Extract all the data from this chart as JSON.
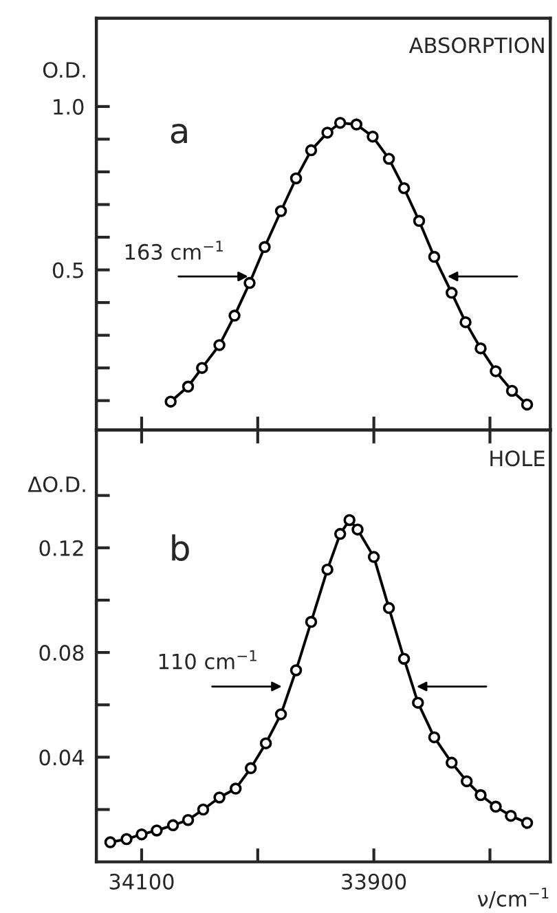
{
  "chart_data": [
    {
      "type": "line",
      "ylabel": "O.D.",
      "marker": "circle",
      "line_style": "solid",
      "grid": false,
      "tick_labels": "y",
      "xlim": [
        34139,
        33748
      ],
      "xticks": [
        {
          "value": 34100,
          "label": null
        },
        {
          "value": 34000,
          "label": null
        },
        {
          "value": 33900,
          "label": null
        },
        {
          "value": 33800,
          "label": null
        }
      ],
      "ylim": [
        0.01,
        1.27
      ],
      "yticks": [
        {
          "value": 0.1,
          "label": null
        },
        {
          "value": 0.2,
          "label": null
        },
        {
          "value": 0.3,
          "label": null
        },
        {
          "value": 0.4,
          "label": null
        },
        {
          "value": 0.5,
          "label": "0.5"
        },
        {
          "value": 0.6,
          "label": null
        },
        {
          "value": 0.7,
          "label": null
        },
        {
          "value": 0.8,
          "label": null
        },
        {
          "value": 0.9,
          "label": null
        },
        {
          "value": 1.0,
          "label": "1.0"
        }
      ],
      "annotations": [
        "ABSORPTION",
        "a",
        {
          "text": "163 cm$^{−1}$",
          "x": 34005,
          "y": 0.48
        }
      ],
      "series": [
        {
          "color": "#000000",
          "x": [
            34075,
            34060,
            34048,
            34033,
            34020,
            34007,
            33994,
            33980,
            33967,
            33954,
            33940,
            33929,
            33915,
            33901,
            33887,
            33874,
            33861,
            33848,
            33833,
            33821,
            33808,
            33795,
            33781,
            33768
          ],
          "values": [
            0.097,
            0.143,
            0.2,
            0.27,
            0.36,
            0.46,
            0.57,
            0.68,
            0.78,
            0.866,
            0.92,
            0.95,
            0.945,
            0.908,
            0.84,
            0.75,
            0.65,
            0.54,
            0.43,
            0.34,
            0.26,
            0.19,
            0.13,
            0.088
          ]
        }
      ]
    },
    {
      "type": "line",
      "ylabel": "ΔO.D.",
      "xlabel": "ν/cm$^{−1}$",
      "marker": "circle",
      "line_style": "solid",
      "grid": false,
      "xlim": [
        34139,
        33748
      ],
      "xticks": [
        34100,
        {
          "value": 34000,
          "label": null
        },
        33900,
        {
          "value": 33800,
          "label": null
        }
      ],
      "ylim": [
        0.0,
        0.165
      ],
      "yticks": [
        {
          "value": 0.02,
          "label": null
        },
        0.04,
        {
          "value": 0.06,
          "label": null
        },
        0.08,
        {
          "value": 0.1,
          "label": null
        },
        0.12,
        {
          "value": 0.14,
          "label": null
        }
      ],
      "annotations": [
        "HOLE",
        "b",
        {
          "text": "110 cm$^{−1}$",
          "x": 33976,
          "y": 0.067
        }
      ],
      "series": [
        {
          "color": "#000000",
          "x": [
            34127,
            34113,
            34100,
            34087,
            34073,
            34060,
            34047,
            34033,
            34019,
            34006,
            33993,
            33980,
            33967,
            33954,
            33940,
            33929,
            33921,
            33914,
            33900,
            33887,
            33874,
            33862,
            33848,
            33833,
            33820,
            33808,
            33795,
            33782,
            33768
          ],
          "values": [
            0.0075,
            0.0087,
            0.0105,
            0.012,
            0.014,
            0.016,
            0.02,
            0.0246,
            0.028,
            0.0358,
            0.0453,
            0.0564,
            0.0732,
            0.0917,
            0.1117,
            0.1253,
            0.1306,
            0.127,
            0.1165,
            0.097,
            0.0776,
            0.0608,
            0.0476,
            0.0379,
            0.0308,
            0.0255,
            0.0211,
            0.0176,
            0.0149
          ]
        }
      ]
    }
  ]
}
